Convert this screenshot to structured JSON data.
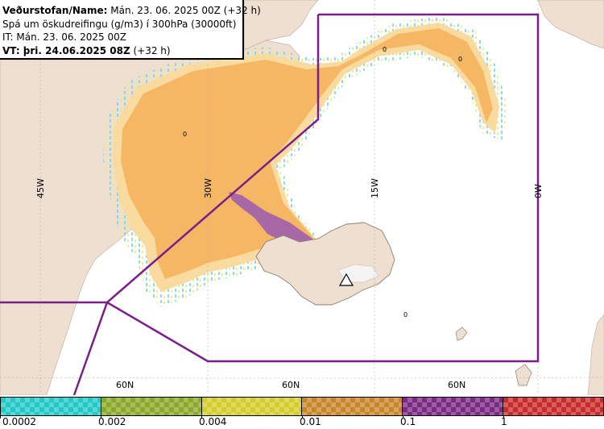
{
  "header": {
    "line1_bold": "Veðurstofan/Name:",
    "line1_rest": " Mán. 23. 06. 2025 00Z (+32 h)",
    "line2": "Spá um öskudreifingu (g/m3) í 300hPa (30000ft)",
    "line3": "IT: Mán. 23. 06. 2025 00Z",
    "line4_bold": "VT: þri. 24.06.2025 08Z",
    "line4_rest": " (+32 h)"
  },
  "longitude_labels": [
    "45W",
    "30W",
    "15W",
    "0W"
  ],
  "latitude_labels": [
    "60N",
    "60N",
    "60N"
  ],
  "contour_values": [
    "0",
    "0",
    "0",
    "0"
  ],
  "legend": {
    "labels": [
      "0.0002",
      "0.002",
      "0.004",
      "0.01",
      "0.1",
      "1"
    ],
    "colors": [
      "#22c8c8",
      "#8aa82a",
      "#d4cc2a",
      "#c8862a",
      "#7a2a82",
      "#c82a2a"
    ]
  },
  "colors": {
    "land": "#efdfd0",
    "sea": "#ffffff",
    "boundary": "#7a1f8a",
    "ash_light": "#f9dba0",
    "ash_mid": "#f6b764",
    "ash_purple": "#9a5ab0"
  }
}
